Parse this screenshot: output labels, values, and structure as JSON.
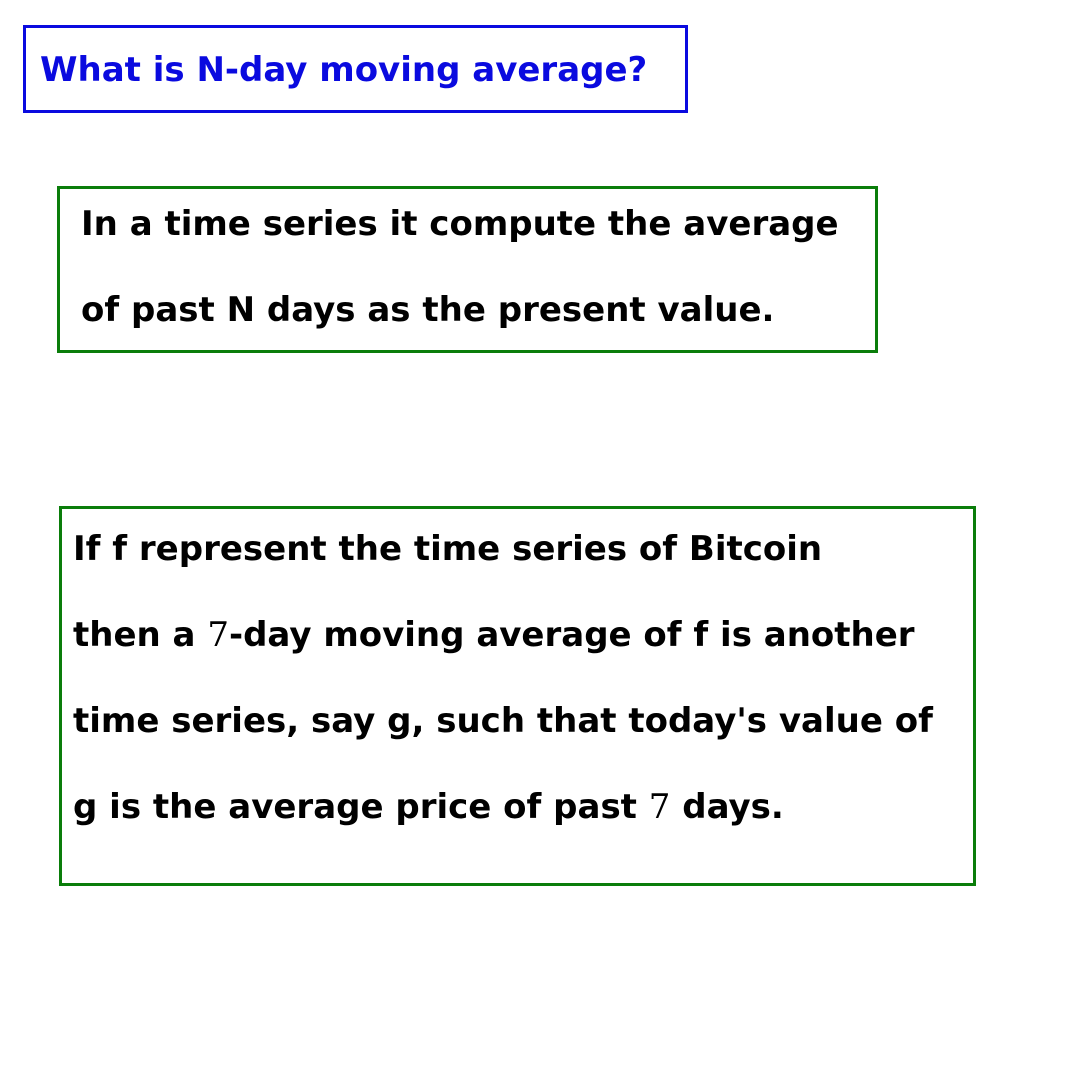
{
  "colors": {
    "title": "#0a0adf",
    "frame": "#0a7d0a",
    "text": "#000000"
  },
  "title": {
    "text": "What is N-day moving average?"
  },
  "definition": {
    "lines": [
      "In a time series it compute the average",
      "of past N days as the present value."
    ]
  },
  "example": {
    "line1": "If f represent the time series of Bitcoin",
    "line2_before": "then a ",
    "line2_number": "7",
    "line2_after": "-day moving average of f is another",
    "line3": "time series, say g, such that today's value of",
    "line4_before": "g is the average price of past ",
    "line4_number": "7",
    "line4_after": " days."
  }
}
